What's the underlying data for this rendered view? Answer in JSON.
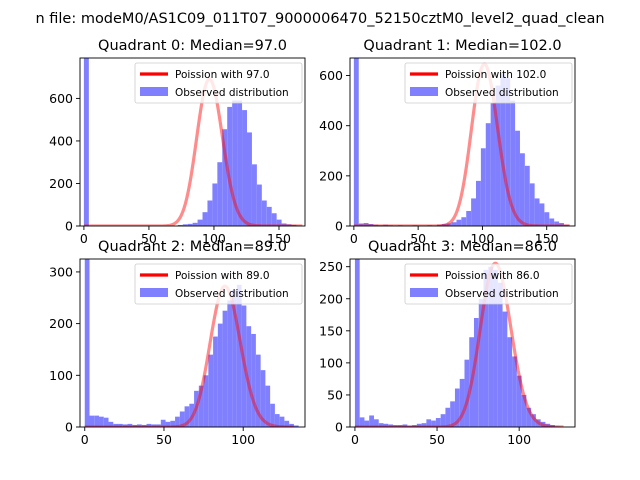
{
  "figure": {
    "suptitle": "n file: modeM0/AS1C09_011T07_9000006470_52150cztM0_level2_quad_clean"
  },
  "colors": {
    "hist": "#8080ff",
    "fit": "#ff0000",
    "axis": "#000000",
    "background": "#ffffff"
  },
  "chart_data": [
    {
      "type": "bar",
      "title": "Quadrant 0: Median=97.0",
      "legend_fit": "Poission with 97.0",
      "legend_hist": "Observed distribution",
      "legend_position": "top-right",
      "xlim": [
        -3,
        170
      ],
      "ylim": [
        0,
        790
      ],
      "xticks": [
        0,
        50,
        100,
        150
      ],
      "yticks": [
        0,
        200,
        400,
        600
      ],
      "hist": {
        "bin_start": 0,
        "bin_width": 3.8,
        "counts": [
          790,
          0,
          0,
          0,
          0,
          0,
          0,
          0,
          0,
          0,
          0,
          0,
          0,
          0,
          0,
          0,
          0,
          0,
          0,
          5,
          8,
          10,
          15,
          30,
          65,
          120,
          200,
          300,
          455,
          560,
          590,
          590,
          545,
          440,
          290,
          195,
          120,
          90,
          60,
          30,
          12,
          8,
          5,
          2,
          0
        ]
      },
      "fit": {
        "mean": 97.0,
        "peak": 690,
        "xmin": 0,
        "xmax": 168
      }
    },
    {
      "type": "bar",
      "title": "Quadrant 1: Median=102.0",
      "legend_fit": "Poission with 102.0",
      "legend_hist": "Observed distribution",
      "legend_position": "top-right",
      "xlim": [
        -3,
        172
      ],
      "ylim": [
        0,
        670
      ],
      "xticks": [
        0,
        50,
        100,
        150
      ],
      "yticks": [
        0,
        200,
        400,
        600
      ],
      "hist": {
        "bin_start": 0,
        "bin_width": 3.8,
        "counts": [
          670,
          10,
          12,
          8,
          5,
          3,
          5,
          3,
          2,
          3,
          2,
          2,
          3,
          2,
          2,
          3,
          2,
          5,
          8,
          10,
          15,
          25,
          35,
          60,
          110,
          180,
          310,
          410,
          490,
          560,
          610,
          590,
          500,
          380,
          290,
          240,
          170,
          110,
          90,
          55,
          30,
          18,
          12,
          5,
          2
        ]
      },
      "fit": {
        "mean": 102.0,
        "peak": 645,
        "xmin": 0,
        "xmax": 168
      }
    },
    {
      "type": "bar",
      "title": "Quadrant 2: Median=89.0",
      "legend_fit": "Poission with 89.0",
      "legend_hist": "Observed distribution",
      "legend_position": "top-right",
      "xlim": [
        -3,
        139
      ],
      "ylim": [
        0,
        325
      ],
      "xticks": [
        0,
        50,
        100
      ],
      "yticks": [
        0,
        100,
        200,
        300
      ],
      "hist": {
        "bin_start": 0,
        "bin_width": 3.0,
        "counts": [
          325,
          22,
          22,
          20,
          18,
          10,
          6,
          6,
          5,
          6,
          4,
          5,
          4,
          6,
          5,
          5,
          14,
          10,
          12,
          20,
          30,
          40,
          45,
          70,
          80,
          100,
          140,
          175,
          200,
          225,
          245,
          265,
          275,
          235,
          195,
          180,
          140,
          110,
          80,
          45,
          25,
          20,
          12,
          6,
          3
        ]
      },
      "fit": {
        "mean": 89.0,
        "peak": 272,
        "xmin": 0,
        "xmax": 132
      }
    },
    {
      "type": "bar",
      "title": "Quadrant 3: Median=86.0",
      "legend_fit": "Poission with 86.0",
      "legend_hist": "Observed distribution",
      "legend_position": "top-right",
      "xlim": [
        -3,
        134
      ],
      "ylim": [
        0,
        262
      ],
      "xticks": [
        0,
        50,
        100
      ],
      "yticks": [
        0,
        50,
        100,
        150,
        200,
        250
      ],
      "hist": {
        "bin_start": 0,
        "bin_width": 2.9,
        "counts": [
          262,
          15,
          10,
          18,
          12,
          6,
          5,
          4,
          3,
          3,
          4,
          2,
          3,
          5,
          6,
          12,
          10,
          14,
          20,
          30,
          40,
          60,
          75,
          105,
          140,
          170,
          200,
          245,
          250,
          245,
          225,
          180,
          140,
          110,
          80,
          50,
          30,
          20,
          12,
          8,
          5,
          3,
          1,
          0
        ]
      },
      "fit": {
        "mean": 86.0,
        "peak": 255,
        "xmin": 0,
        "xmax": 127
      }
    }
  ]
}
